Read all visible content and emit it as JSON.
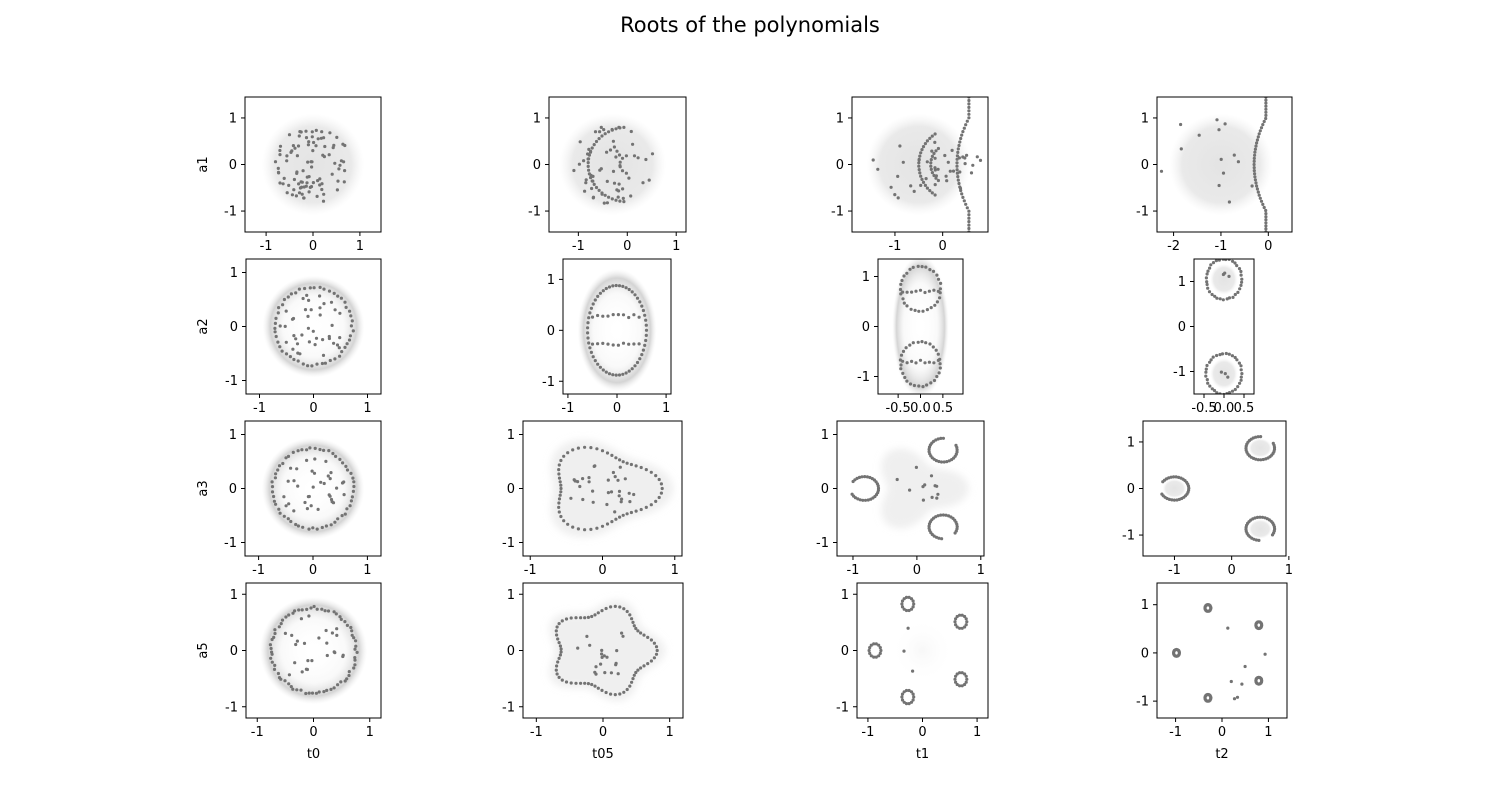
{
  "title": "Roots of the polynomials",
  "row_labels": [
    "a1",
    "a2",
    "a3",
    "a5"
  ],
  "col_labels": [
    "t0",
    "t05",
    "t1",
    "t2"
  ],
  "colors": {
    "points": "#737373",
    "cloud": "#c8c8c8",
    "axes": "#000000"
  },
  "chart_data": [
    {
      "type": "scatter",
      "title": "",
      "xlabel": "",
      "ylabel": "a1",
      "xlim": [
        -1.45,
        1.45
      ],
      "ylim": [
        -1.45,
        1.45
      ],
      "xticks": [
        -1,
        0,
        1
      ],
      "yticks": [
        -1,
        0,
        1
      ],
      "xticklabels": [
        "-1",
        "0",
        "1"
      ],
      "yticklabels": [
        "-1",
        "0",
        "1"
      ],
      "grid": false,
      "cloud": {
        "cx": 0,
        "cy": 0,
        "r": 0.95,
        "style": "disk"
      },
      "points": [
        {
          "shape": "fill",
          "cx": 0,
          "cy": 0,
          "r": 0.82,
          "n": 95
        }
      ]
    },
    {
      "type": "scatter",
      "title": "",
      "xlabel": "",
      "ylabel": "",
      "xlim": [
        -1.6,
        1.2
      ],
      "ylim": [
        -1.45,
        1.45
      ],
      "xticks": [
        -1,
        0,
        1
      ],
      "yticks": [
        -1,
        0,
        1
      ],
      "xticklabels": [
        "-1",
        "0",
        "1"
      ],
      "yticklabels": [
        "-1",
        "0",
        "1"
      ],
      "grid": false,
      "cloud": {
        "cx": -0.3,
        "cy": 0,
        "r": 0.95,
        "style": "disk"
      },
      "points": [
        {
          "shape": "fill",
          "cx": -0.3,
          "cy": 0,
          "r": 0.85,
          "n": 55
        },
        {
          "shape": "arc",
          "cx": 0,
          "cy": 0,
          "r": 0.8,
          "a0": 95,
          "a1": 265,
          "n": 30
        },
        {
          "shape": "arc",
          "cx": 0.05,
          "cy": 0,
          "r": 0.2,
          "a0": 110,
          "a1": 250,
          "n": 6
        }
      ]
    },
    {
      "type": "scatter",
      "title": "",
      "xlabel": "",
      "ylabel": "",
      "xlim": [
        -1.9,
        0.95
      ],
      "ylim": [
        -1.45,
        1.45
      ],
      "xticks": [
        -1,
        0
      ],
      "yticks": [
        -1,
        0,
        1
      ],
      "xticklabels": [
        "-1",
        "0"
      ],
      "yticklabels": [
        "-1",
        "0",
        "1"
      ],
      "grid": false,
      "cloud": {
        "cx": -0.5,
        "cy": 0,
        "r": 0.95,
        "style": "disk"
      },
      "points": [
        {
          "shape": "fill",
          "cx": -0.8,
          "cy": 0,
          "r": 0.8,
          "n": 18
        },
        {
          "shape": "curve",
          "x0": 0.55,
          "a": 0.25,
          "y0": -1.45,
          "y1": 1.45,
          "n": 40
        },
        {
          "shape": "arc",
          "cx": 0.3,
          "cy": 0,
          "r": 0.8,
          "a0": 125,
          "a1": 235,
          "n": 22
        },
        {
          "shape": "arc",
          "cx": 0.2,
          "cy": 0,
          "r": 0.45,
          "a0": 130,
          "a1": 230,
          "n": 12
        },
        {
          "shape": "fill",
          "cx": 0.25,
          "cy": 0,
          "r": 0.6,
          "n": 22
        }
      ]
    },
    {
      "type": "scatter",
      "title": "",
      "xlabel": "",
      "ylabel": "",
      "xlim": [
        -2.35,
        0.5
      ],
      "ylim": [
        -1.45,
        1.45
      ],
      "xticks": [
        -2,
        -1,
        0
      ],
      "yticks": [
        -1,
        0,
        1
      ],
      "xticklabels": [
        "-2",
        "-1",
        "0"
      ],
      "yticklabels": [
        "-1",
        "0",
        "1"
      ],
      "grid": false,
      "cloud": {
        "cx": -1,
        "cy": 0,
        "r": 0.95,
        "style": "disk"
      },
      "points": [
        {
          "shape": "fill",
          "cx": -1.2,
          "cy": 0,
          "r": 1.1,
          "n": 14
        },
        {
          "shape": "curve",
          "x0": -0.05,
          "a": -0.25,
          "y0": -1.45,
          "y1": 1.45,
          "n": 45
        }
      ]
    },
    {
      "type": "scatter",
      "title": "",
      "xlabel": "",
      "ylabel": "a2",
      "xlim": [
        -1.25,
        1.25
      ],
      "ylim": [
        -1.25,
        1.25
      ],
      "xticks": [
        -1,
        0,
        1
      ],
      "yticks": [
        -1,
        0,
        1
      ],
      "xticklabels": [
        "-1",
        "0",
        "1"
      ],
      "yticklabels": [
        "-1",
        "0",
        "1"
      ],
      "grid": false,
      "cloud": {
        "cx": 0,
        "cy": 0,
        "r": 0.82,
        "style": "ring"
      },
      "points": [
        {
          "shape": "ring",
          "cx": 0,
          "cy": 0,
          "r": 0.72,
          "n": 50
        },
        {
          "shape": "fill",
          "cx": 0,
          "cy": 0,
          "r": 0.62,
          "n": 40
        }
      ]
    },
    {
      "type": "scatter",
      "title": "",
      "xlabel": "",
      "ylabel": "",
      "xlim": [
        -1.1,
        1.1
      ],
      "ylim": [
        -1.25,
        1.4
      ],
      "xticks": [
        -1,
        0,
        1
      ],
      "yticks": [
        -1,
        0,
        1
      ],
      "xticklabels": [
        "-1",
        "0",
        "1"
      ],
      "yticklabels": [
        "-1",
        "0",
        "1"
      ],
      "grid": false,
      "cloud": {
        "cx": 0,
        "cy": 0,
        "rx": 0.7,
        "ry": 1.05,
        "style": "ring"
      },
      "points": [
        {
          "shape": "ellipse",
          "cx": 0,
          "cy": 0,
          "rx": 0.6,
          "ry": 0.88,
          "n": 55
        },
        {
          "shape": "hline",
          "x0": -0.5,
          "x1": 0.45,
          "y": 0.28,
          "n": 10
        },
        {
          "shape": "hline",
          "x0": -0.5,
          "x1": 0.45,
          "y": -0.28,
          "n": 10
        }
      ]
    },
    {
      "type": "scatter",
      "title": "",
      "xlabel": "",
      "ylabel": "",
      "xlim": [
        -0.95,
        0.95
      ],
      "ylim": [
        -1.35,
        1.35
      ],
      "xticks": [
        -0.5,
        0,
        0.5
      ],
      "yticks": [
        -1,
        0,
        1
      ],
      "xticklabels": [
        "-0.5",
        "0.0",
        "0.5"
      ],
      "yticklabels": [
        "-1",
        "0",
        "1"
      ],
      "grid": false,
      "cloud": {
        "cx": 0,
        "cy": 0,
        "rx": 0.55,
        "ry": 1.25,
        "style": "ring"
      },
      "points": [
        {
          "shape": "ring",
          "cx": 0,
          "cy": 0.75,
          "r": 0.45,
          "n": 30
        },
        {
          "shape": "ring",
          "cx": 0,
          "cy": -0.75,
          "r": 0.45,
          "n": 30
        },
        {
          "shape": "hline",
          "x0": -0.4,
          "x1": 0.4,
          "y": 0.7,
          "n": 9
        },
        {
          "shape": "hline",
          "x0": -0.4,
          "x1": 0.4,
          "y": -0.7,
          "n": 9
        }
      ]
    },
    {
      "type": "scatter",
      "title": "",
      "xlabel": "",
      "ylabel": "",
      "xlim": [
        -0.75,
        0.75
      ],
      "ylim": [
        -1.5,
        1.5
      ],
      "xticks": [
        -0.5,
        0,
        0.5
      ],
      "yticks": [
        -1,
        0,
        1
      ],
      "xticklabels": [
        "-0.5",
        "0.0",
        "0.5"
      ],
      "yticklabels": [
        "-1",
        "0",
        "1"
      ],
      "grid": false,
      "cloud": [
        {
          "cx": 0,
          "cy": 1.05,
          "r": 0.3,
          "style": "disk"
        },
        {
          "cx": 0,
          "cy": -1.05,
          "r": 0.3,
          "style": "disk"
        }
      ],
      "points": [
        {
          "shape": "ring",
          "cx": 0,
          "cy": 1.05,
          "r": 0.45,
          "n": 35
        },
        {
          "shape": "ring",
          "cx": 0,
          "cy": -1.05,
          "r": 0.45,
          "n": 35
        },
        {
          "shape": "fill",
          "cx": 0,
          "cy": 1.05,
          "r": 0.15,
          "n": 3
        },
        {
          "shape": "fill",
          "cx": 0,
          "cy": -1.05,
          "r": 0.15,
          "n": 3
        }
      ]
    },
    {
      "type": "scatter",
      "title": "",
      "xlabel": "",
      "ylabel": "a3",
      "xlim": [
        -1.25,
        1.25
      ],
      "ylim": [
        -1.25,
        1.25
      ],
      "xticks": [
        -1,
        0,
        1
      ],
      "yticks": [
        -1,
        0,
        1
      ],
      "xticklabels": [
        "-1",
        "0",
        "1"
      ],
      "yticklabels": [
        "-1",
        "0",
        "1"
      ],
      "grid": false,
      "cloud": {
        "cx": 0,
        "cy": 0,
        "r": 0.82,
        "style": "ring"
      },
      "points": [
        {
          "shape": "ring",
          "cx": 0,
          "cy": 0,
          "r": 0.74,
          "n": 55
        },
        {
          "shape": "fill",
          "cx": 0,
          "cy": 0,
          "r": 0.6,
          "n": 35
        }
      ]
    },
    {
      "type": "scatter",
      "title": "",
      "xlabel": "",
      "ylabel": "",
      "xlim": [
        -1.1,
        1.1
      ],
      "ylim": [
        -1.25,
        1.25
      ],
      "xticks": [
        -1,
        0,
        1
      ],
      "yticks": [
        -1,
        0,
        1
      ],
      "xticklabels": [
        "-1",
        "0",
        "1"
      ],
      "yticklabels": [
        "-1",
        "0",
        "1"
      ],
      "grid": false,
      "cloud": {
        "cx": 0,
        "cy": 0,
        "r": 0.72,
        "k": 3,
        "amp": 0.18,
        "style": "ring"
      },
      "points": [
        {
          "shape": "star",
          "cx": 0,
          "cy": 0,
          "r": 0.7,
          "k": 3,
          "amp": 0.18,
          "n": 60
        },
        {
          "shape": "fill",
          "cx": 0,
          "cy": 0,
          "r": 0.5,
          "n": 30
        }
      ]
    },
    {
      "type": "scatter",
      "title": "",
      "xlabel": "",
      "ylabel": "",
      "xlim": [
        -1.25,
        1.05
      ],
      "ylim": [
        -1.25,
        1.25
      ],
      "xticks": [
        -1,
        0,
        1
      ],
      "yticks": [
        -1,
        0,
        1
      ],
      "xticklabels": [
        "-1",
        "0",
        "1"
      ],
      "yticklabels": [
        "-1",
        "0",
        "1"
      ],
      "grid": false,
      "cloud": {
        "cx": 0,
        "cy": 0,
        "r": 0.55,
        "k": 3,
        "amp": 0.28,
        "style": "tri"
      },
      "points": [
        {
          "shape": "trircl",
          "r": 0.82,
          "rr": 0.22,
          "n": 28
        },
        {
          "shape": "fill",
          "cx": 0,
          "cy": 0,
          "r": 0.4,
          "n": 12
        }
      ]
    },
    {
      "type": "scatter",
      "title": "",
      "xlabel": "",
      "ylabel": "",
      "xlim": [
        -1.55,
        0.95
      ],
      "ylim": [
        -1.45,
        1.45
      ],
      "xticks": [
        -1,
        0,
        1
      ],
      "yticks": [
        -1,
        0,
        1
      ],
      "xticklabels": [
        "-1",
        "0",
        "1"
      ],
      "yticklabels": [
        "-1",
        "0",
        "1"
      ],
      "grid": false,
      "cloud": [
        {
          "cx": -1,
          "cy": 0,
          "r": 0.18,
          "style": "disk"
        },
        {
          "cx": 0.5,
          "cy": 0.87,
          "r": 0.18,
          "style": "disk"
        },
        {
          "cx": 0.5,
          "cy": -0.87,
          "r": 0.18,
          "style": "disk"
        }
      ],
      "points": [
        {
          "shape": "trircl",
          "r": 1.0,
          "rr": 0.25,
          "n": 30
        }
      ]
    },
    {
      "type": "scatter",
      "title": "",
      "xlabel": "t0",
      "ylabel": "a5",
      "xlim": [
        -1.2,
        1.2
      ],
      "ylim": [
        -1.2,
        1.2
      ],
      "xticks": [
        -1,
        0,
        1
      ],
      "yticks": [
        -1,
        0,
        1
      ],
      "xticklabels": [
        "-1",
        "0",
        "1"
      ],
      "yticklabels": [
        "-1",
        "0",
        "1"
      ],
      "grid": false,
      "cloud": {
        "cx": 0,
        "cy": 0,
        "r": 0.83,
        "style": "ring"
      },
      "points": [
        {
          "shape": "ring",
          "cx": 0,
          "cy": 0,
          "r": 0.76,
          "n": 70
        },
        {
          "shape": "fill",
          "cx": 0,
          "cy": 0,
          "r": 0.62,
          "n": 25
        }
      ]
    },
    {
      "type": "scatter",
      "title": "",
      "xlabel": "t05",
      "ylabel": "",
      "xlim": [
        -1.2,
        1.2
      ],
      "ylim": [
        -1.2,
        1.2
      ],
      "xticks": [
        -1,
        0,
        1
      ],
      "yticks": [
        -1,
        0,
        1
      ],
      "xticklabels": [
        "-1",
        "0",
        "1"
      ],
      "yticklabels": [
        "-1",
        "0",
        "1"
      ],
      "grid": false,
      "cloud": {
        "cx": 0,
        "cy": 0,
        "r": 0.72,
        "k": 5,
        "amp": 0.13,
        "style": "ring"
      },
      "points": [
        {
          "shape": "star",
          "cx": 0,
          "cy": 0,
          "r": 0.72,
          "k": 5,
          "amp": 0.13,
          "n": 75
        },
        {
          "shape": "fill",
          "cx": 0,
          "cy": 0,
          "r": 0.5,
          "n": 20
        }
      ]
    },
    {
      "type": "scatter",
      "title": "",
      "xlabel": "t1",
      "ylabel": "",
      "xlim": [
        -1.2,
        1.2
      ],
      "ylim": [
        -1.2,
        1.2
      ],
      "xticks": [
        -1,
        0,
        1
      ],
      "yticks": [
        -1,
        0,
        1
      ],
      "xticklabels": [
        "-1",
        "0",
        "1"
      ],
      "yticklabels": [
        "-1",
        "0",
        "1"
      ],
      "grid": false,
      "cloud": {
        "cx": 0,
        "cy": 0,
        "r": 0.5,
        "style": "faint"
      },
      "points": [
        {
          "shape": "penta",
          "r": 0.87,
          "rr": 0.12,
          "n": 14
        },
        {
          "shape": "fill",
          "cx": 0,
          "cy": 0,
          "r": 0.5,
          "n": 3
        }
      ]
    },
    {
      "type": "scatter",
      "title": "",
      "xlabel": "t2",
      "ylabel": "",
      "xlim": [
        -1.4,
        1.4
      ],
      "ylim": [
        -1.35,
        1.45
      ],
      "xticks": [
        -1,
        0,
        1
      ],
      "yticks": [
        -1,
        0,
        1
      ],
      "xticklabels": [
        "-1",
        "0",
        "1"
      ],
      "yticklabels": [
        "-1",
        "0",
        "1"
      ],
      "grid": false,
      "cloud": {
        "cx": 0,
        "cy": 0,
        "r": 0.0,
        "style": "none"
      },
      "points": [
        {
          "shape": "penta",
          "r": 0.98,
          "rr": 0.07,
          "n": 16
        },
        {
          "shape": "fill",
          "cx": 0.1,
          "cy": 0,
          "r": 1.1,
          "n": 7
        }
      ]
    }
  ]
}
